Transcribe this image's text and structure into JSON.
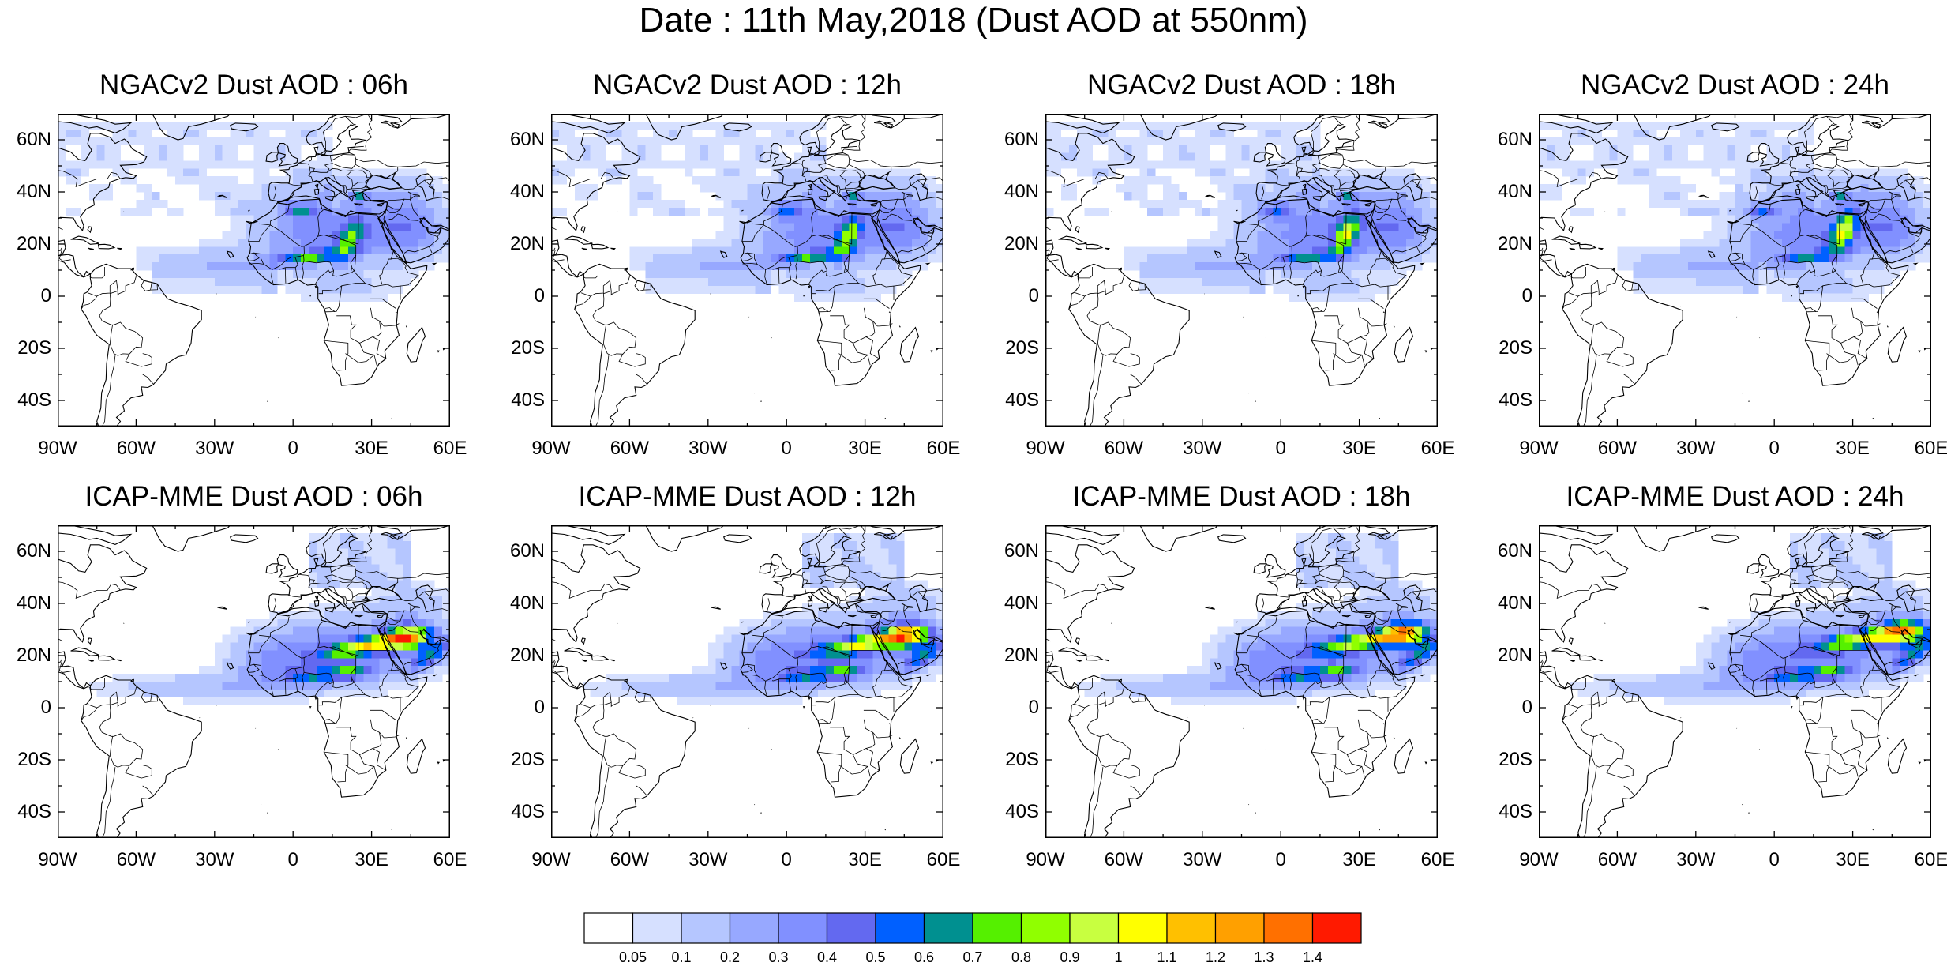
{
  "title": "Date : 11th May,2018 (Dust AOD at 550nm)",
  "panels": [
    {
      "title": "NGACv2 Dust AOD : 06h",
      "model": "NGACv2",
      "hour": "06h"
    },
    {
      "title": "NGACv2 Dust AOD : 12h",
      "model": "NGACv2",
      "hour": "12h"
    },
    {
      "title": "NGACv2 Dust AOD : 18h",
      "model": "NGACv2",
      "hour": "18h"
    },
    {
      "title": "NGACv2 Dust AOD : 24h",
      "model": "NGACv2",
      "hour": "24h"
    },
    {
      "title": "ICAP-MME Dust AOD : 06h",
      "model": "ICAP-MME",
      "hour": "06h"
    },
    {
      "title": "ICAP-MME Dust AOD : 12h",
      "model": "ICAP-MME",
      "hour": "12h"
    },
    {
      "title": "ICAP-MME Dust AOD : 18h",
      "model": "ICAP-MME",
      "hour": "18h"
    },
    {
      "title": "ICAP-MME Dust AOD : 24h",
      "model": "ICAP-MME",
      "hour": "24h"
    }
  ],
  "axes": {
    "lon_range": [
      -90,
      60
    ],
    "lat_range": [
      -50,
      70
    ],
    "y_ticks": [
      {
        "lat": 60,
        "label": "60N"
      },
      {
        "lat": 40,
        "label": "40N"
      },
      {
        "lat": 20,
        "label": "20N"
      },
      {
        "lat": 0,
        "label": "0"
      },
      {
        "lat": -20,
        "label": "20S"
      },
      {
        "lat": -40,
        "label": "40S"
      }
    ],
    "x_ticks": [
      {
        "lon": -90,
        "label": "90W"
      },
      {
        "lon": -60,
        "label": "60W"
      },
      {
        "lon": -30,
        "label": "30W"
      },
      {
        "lon": 0,
        "label": "0"
      },
      {
        "lon": 30,
        "label": "30E"
      },
      {
        "lon": 60,
        "label": "60E"
      }
    ]
  },
  "colorbar": {
    "levels": [
      "0.05",
      "0.1",
      "0.2",
      "0.3",
      "0.4",
      "0.5",
      "0.6",
      "0.7",
      "0.8",
      "0.9",
      "1",
      "1.1",
      "1.2",
      "1.3",
      "1.4"
    ],
    "colors": [
      "#ffffff",
      "#d6e0ff",
      "#b5c6ff",
      "#97a8ff",
      "#8190ff",
      "#6369f0",
      "#0060ff",
      "#009090",
      "#55f000",
      "#90ff00",
      "#c8ff40",
      "#ffff00",
      "#ffc000",
      "#ffa000",
      "#ff7000",
      "#ff1a00"
    ]
  }
}
